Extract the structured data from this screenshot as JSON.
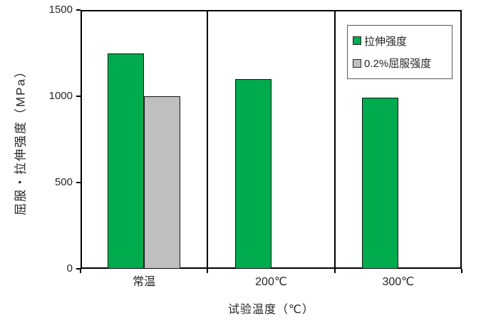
{
  "chart_data": {
    "type": "bar",
    "categories": [
      "常温",
      "200℃",
      "300℃"
    ],
    "series": [
      {
        "name": "拉伸强度",
        "color": "#00AB4E",
        "values": [
          1250,
          1100,
          990
        ]
      },
      {
        "name": "0.2%屈服强度",
        "color": "#BFBFBF",
        "values": [
          1000,
          null,
          null
        ]
      }
    ],
    "title": "",
    "xlabel": "试验温度（℃）",
    "ylabel": "屈服・拉伸强度（MPa）",
    "ylim": [
      0,
      1500
    ],
    "yticks": [
      0,
      500,
      1000,
      1500
    ],
    "grid": false,
    "legend_position": "top-right",
    "category_separators": true,
    "colors": {
      "axis": "#000000",
      "text": "#262626",
      "bar_border": "#111111",
      "legend_border": "#595959",
      "background": "#FFFFFF"
    }
  }
}
